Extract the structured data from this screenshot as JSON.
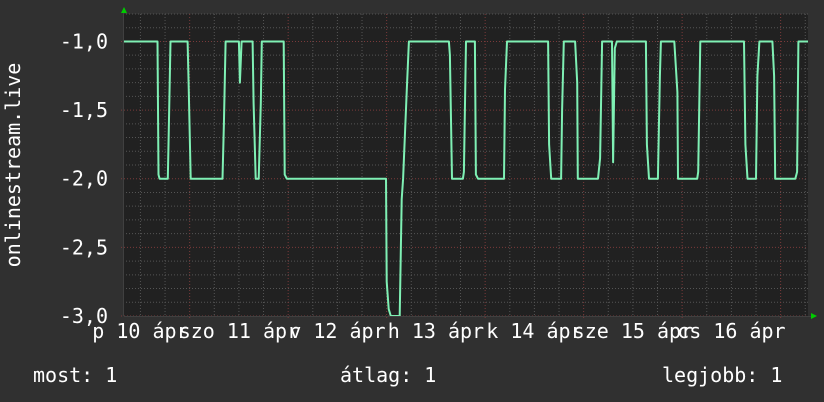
{
  "chart_data": {
    "type": "line",
    "title": "",
    "ylabel": "onlinestream.live",
    "xlabel": "",
    "ylim": [
      -3.0,
      -0.8
    ],
    "xlim": [
      "04-10 08:00",
      "04-17 06:40"
    ],
    "grid": true,
    "y_ticks": [
      {
        "value": -1.0,
        "label": "-1,0"
      },
      {
        "value": -1.5,
        "label": "-1,5"
      },
      {
        "value": -2.0,
        "label": "-2,0"
      },
      {
        "value": -2.5,
        "label": "-2,5"
      },
      {
        "value": -3.0,
        "label": "-3,0"
      }
    ],
    "x_ticks": [
      {
        "at": "04-10 12:00",
        "label": "p 10 ápr"
      },
      {
        "at": "04-11 12:00",
        "label": "szo 11 ápr"
      },
      {
        "at": "04-12 12:00",
        "label": "v 12 ápr"
      },
      {
        "at": "04-13 12:00",
        "label": "h 13 ápr"
      },
      {
        "at": "04-14 12:00",
        "label": "k 14 ápr"
      },
      {
        "at": "04-15 12:00",
        "label": "sze 15 ápr"
      },
      {
        "at": "04-16 12:00",
        "label": "cs 16 ápr"
      }
    ],
    "colors": {
      "background": "#303030",
      "plot": "#212121",
      "line": "#7ff0b4",
      "grid_minor": "#555555",
      "grid_major": "#7a3a3a",
      "arrow": "#00cc00"
    },
    "series": [
      {
        "points": [
          [
            "04-10 08:00",
            -1
          ],
          [
            "04-10 16:10",
            -1
          ],
          [
            "04-10 16:25",
            -1.97
          ],
          [
            "04-10 16:40",
            -2
          ],
          [
            "04-10 18:40",
            -2
          ],
          [
            "04-10 18:50",
            -1.75
          ],
          [
            "04-10 19:20",
            -1
          ],
          [
            "04-10 23:30",
            -1
          ],
          [
            "04-10 23:45",
            -1.3
          ],
          [
            "04-11 00:15",
            -2
          ],
          [
            "04-11 08:00",
            -2
          ],
          [
            "04-11 08:20",
            -1.6
          ],
          [
            "04-11 08:45",
            -1
          ],
          [
            "04-11 12:00",
            -1
          ],
          [
            "04-11 12:15",
            -1.3
          ],
          [
            "04-11 12:40",
            -1
          ],
          [
            "04-11 15:20",
            -1
          ],
          [
            "04-11 15:35",
            -1.45
          ],
          [
            "04-11 16:05",
            -2
          ],
          [
            "04-11 16:50",
            -2
          ],
          [
            "04-11 17:20",
            -1.45
          ],
          [
            "04-11 17:35",
            -1
          ],
          [
            "04-11 22:55",
            -1
          ],
          [
            "04-11 23:10",
            -1.97
          ],
          [
            "04-11 23:40",
            -2
          ],
          [
            "04-12 23:50",
            -2
          ],
          [
            "04-13 00:00",
            -2.75
          ],
          [
            "04-13 00:30",
            -2.95
          ],
          [
            "04-13 01:00",
            -3
          ],
          [
            "04-13 03:10",
            -3
          ],
          [
            "04-13 03:40",
            -2.15
          ],
          [
            "04-13 04:00",
            -2
          ],
          [
            "04-13 04:55",
            -1.35
          ],
          [
            "04-13 05:25",
            -1
          ],
          [
            "04-13 15:10",
            -1
          ],
          [
            "04-13 15:25",
            -1.1
          ],
          [
            "04-13 15:55",
            -2
          ],
          [
            "04-13 18:35",
            -2
          ],
          [
            "04-13 18:50",
            -1.95
          ],
          [
            "04-13 19:20",
            -1
          ],
          [
            "04-13 21:30",
            -1
          ],
          [
            "04-13 21:45",
            -1.97
          ],
          [
            "04-13 22:15",
            -2
          ],
          [
            "04-14 04:35",
            -2
          ],
          [
            "04-14 04:50",
            -1.35
          ],
          [
            "04-14 05:20",
            -1
          ],
          [
            "04-14 15:20",
            -1
          ],
          [
            "04-14 15:35",
            -1.75
          ],
          [
            "04-14 16:05",
            -2
          ],
          [
            "04-14 18:30",
            -2
          ],
          [
            "04-14 18:45",
            -1.5
          ],
          [
            "04-14 19:10",
            -1
          ],
          [
            "04-14 21:55",
            -1
          ],
          [
            "04-14 22:25",
            -1.3
          ],
          [
            "04-14 22:35",
            -2
          ],
          [
            "04-15 03:30",
            -2
          ],
          [
            "04-15 04:00",
            -1.85
          ],
          [
            "04-15 04:30",
            -1
          ],
          [
            "04-15 06:55",
            -1
          ],
          [
            "04-15 07:10",
            -1.88
          ],
          [
            "04-15 07:35",
            -1.05
          ],
          [
            "04-15 08:05",
            -1
          ],
          [
            "04-15 15:10",
            -1
          ],
          [
            "04-15 15:25",
            -1.75
          ],
          [
            "04-15 15:55",
            -2
          ],
          [
            "04-15 18:05",
            -2
          ],
          [
            "04-15 18:35",
            -1.25
          ],
          [
            "04-15 18:50",
            -1
          ],
          [
            "04-15 22:05",
            -1
          ],
          [
            "04-15 22:50",
            -1.37
          ],
          [
            "04-15 23:00",
            -2
          ],
          [
            "04-16 03:40",
            -2
          ],
          [
            "04-16 03:55",
            -1.95
          ],
          [
            "04-16 04:25",
            -1
          ],
          [
            "04-16 15:05",
            -1
          ],
          [
            "04-16 15:25",
            -1.75
          ],
          [
            "04-16 15:55",
            -2
          ],
          [
            "04-16 18:00",
            -2
          ],
          [
            "04-16 18:20",
            -1.25
          ],
          [
            "04-16 18:50",
            -1
          ],
          [
            "04-16 22:00",
            -1
          ],
          [
            "04-16 22:25",
            -1.25
          ],
          [
            "04-16 22:40",
            -2
          ],
          [
            "04-17 03:35",
            -2
          ],
          [
            "04-17 04:00",
            -1.95
          ],
          [
            "04-17 04:20",
            -1
          ],
          [
            "04-17 06:40",
            -1
          ]
        ]
      }
    ]
  },
  "legend": {
    "current": "most: 1",
    "average": "átlag: 1",
    "max": "legjobb: 1"
  }
}
